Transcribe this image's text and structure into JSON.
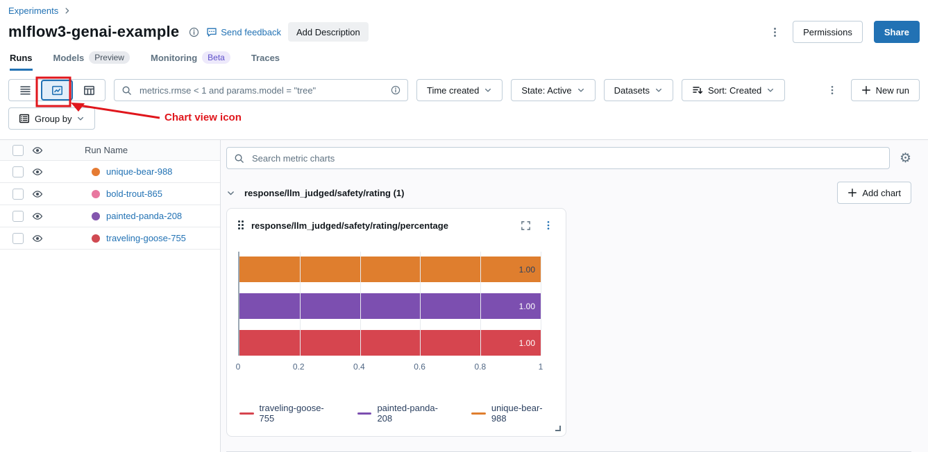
{
  "colors": {
    "accent": "#2272b4",
    "annotation": "#e0161c",
    "panel_bg": "#fafafc"
  },
  "breadcrumb": {
    "experiments": "Experiments"
  },
  "header": {
    "title": "mlflow3-genai-example",
    "send_feedback": "Send feedback",
    "add_description": "Add Description",
    "permissions": "Permissions",
    "share": "Share"
  },
  "tabs": [
    {
      "label": "Runs",
      "active": true
    },
    {
      "label": "Models",
      "badge": "Preview",
      "badge_bg": "#e8eaee",
      "badge_fg": "#44505c"
    },
    {
      "label": "Monitoring",
      "badge": "Beta",
      "badge_bg": "#ede9fb",
      "badge_fg": "#5c4ec9"
    },
    {
      "label": "Traces"
    }
  ],
  "toolbar": {
    "search_value": "metrics.rmse < 1 and params.model = \"tree\"",
    "filters": [
      {
        "label": "Time created"
      },
      {
        "label": "State: Active"
      },
      {
        "label": "Datasets"
      },
      {
        "label": "Sort: Created",
        "icon": "sort"
      }
    ],
    "new_run_label": "New run",
    "group_by_label": "Group by"
  },
  "annotation": {
    "label": "Chart view icon"
  },
  "runs_table": {
    "name_header": "Run Name",
    "rows": [
      {
        "name": "unique-bear-988",
        "color": "#e57b33"
      },
      {
        "name": "bold-trout-865",
        "color": "#e8779f"
      },
      {
        "name": "painted-panda-208",
        "color": "#8456ae"
      },
      {
        "name": "traveling-goose-755",
        "color": "#d04a52"
      }
    ]
  },
  "charts_panel": {
    "search_placeholder": "Search metric charts",
    "section_title": "response/llm_judged/safety/rating",
    "section_count": "(1)",
    "add_chart_label": "Add chart"
  },
  "chart_data": {
    "type": "bar",
    "orientation": "horizontal",
    "title": "response/llm_judged/safety/rating/percentage",
    "xlabel": "",
    "ylabel": "",
    "xlim": [
      0,
      1
    ],
    "xticks": [
      "0",
      "0.2",
      "0.4",
      "0.6",
      "0.8",
      "1"
    ],
    "grid": true,
    "legend_position": "bottom",
    "series": [
      {
        "name": "unique-bear-988",
        "value": 1.0,
        "label": "1.00",
        "color": "#df7e2e",
        "label_color": "#2a3f5f"
      },
      {
        "name": "painted-panda-208",
        "value": 1.0,
        "label": "1.00",
        "color": "#7c4fb0",
        "label_color": "#ffffff"
      },
      {
        "name": "traveling-goose-755",
        "value": 1.0,
        "label": "1.00",
        "color": "#d6454f",
        "label_color": "#ffffff"
      }
    ],
    "legend": [
      {
        "name": "traveling-goose-755",
        "color": "#d6454f"
      },
      {
        "name": "painted-panda-208",
        "color": "#7c4fb0"
      },
      {
        "name": "unique-bear-988",
        "color": "#df7e2e"
      }
    ]
  }
}
